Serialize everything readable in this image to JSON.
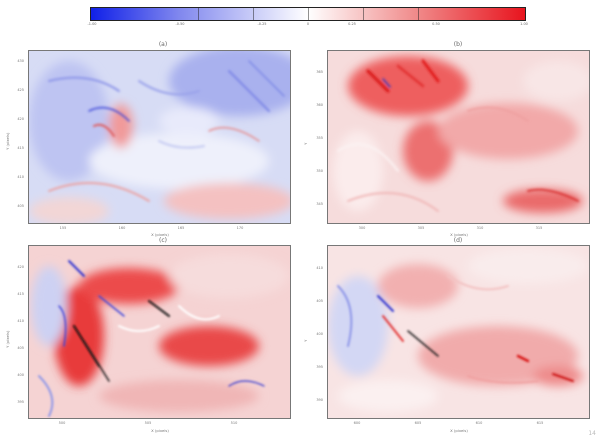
{
  "colorbar": {
    "ticks": [
      "-1.00",
      "-0.50",
      "-0.25",
      "0",
      "0.25",
      "0.50",
      "1.00"
    ]
  },
  "panels": [
    {
      "label": "(a)",
      "ylabel": "Y (pixels)",
      "yticks": [
        "405",
        "410",
        "415",
        "420",
        "425",
        "430"
      ],
      "xlabel": "X (pixels)",
      "xticks": [
        "155",
        "160",
        "165",
        "170"
      ]
    },
    {
      "label": "(b)",
      "ylabel": "Y",
      "yticks": [
        "345",
        "350",
        "355",
        "360",
        "365"
      ],
      "xlabel": "X (pixels)",
      "xticks": [
        "300",
        "305",
        "310",
        "315"
      ]
    },
    {
      "label": "(c)",
      "ylabel": "Y (pixels)",
      "yticks": [
        "395",
        "400",
        "405",
        "410",
        "415",
        "420"
      ],
      "xlabel": "X (pixels)",
      "xticks": [
        "500",
        "505",
        "510"
      ]
    },
    {
      "label": "(d)",
      "ylabel": "Y",
      "yticks": [
        "390",
        "395",
        "400",
        "405",
        "410"
      ],
      "xlabel": "X (pixels)",
      "xticks": [
        "600",
        "605",
        "610",
        "615"
      ]
    }
  ],
  "page_number": "14"
}
